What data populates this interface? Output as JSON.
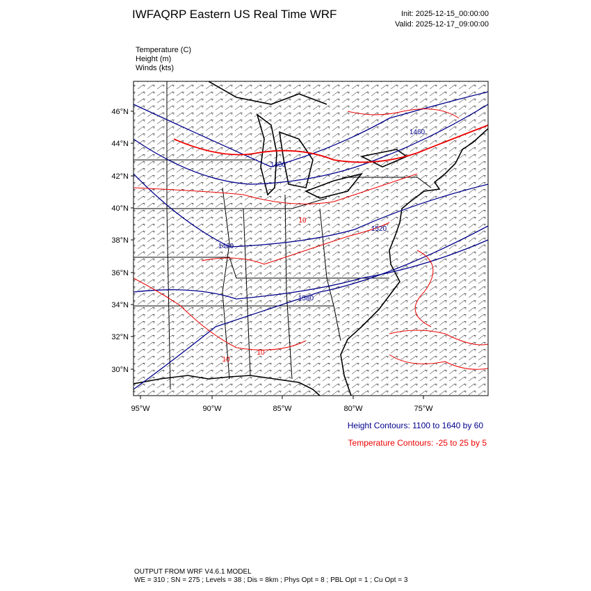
{
  "header": {
    "title": "IWFAQRP Eastern US Real Time WRF",
    "init": "Init: 2025-12-15_00:00:00",
    "valid": "Valid: 2025-12-17_09:00:00"
  },
  "fields": [
    "Temperature   (C)",
    "Height   (m)",
    "Winds   (kts)"
  ],
  "map": {
    "lat_labels": [
      "46°N",
      "44°N",
      "42°N",
      "40°N",
      "38°N",
      "36°N",
      "34°N",
      "32°N",
      "30°N"
    ],
    "lon_labels": [
      "95°W",
      "90°W",
      "85°W",
      "80°W",
      "75°W"
    ],
    "contour_labels": [
      "1400",
      "1460",
      "1460",
      "1520",
      "1580",
      "10",
      "10",
      "10"
    ]
  },
  "legend": {
    "height": "Height Contours: 1100 to 1640 by 60",
    "temperature": "Temperature Contours: -25 to 25 by 5"
  },
  "footer": {
    "line1": "OUTPUT FROM WRF V4.6.1 MODEL",
    "line2": "WE = 310 ; SN = 275 ; Levels = 38 ; Dis = 8km ; Phys Opt = 8 ; PBL Opt = 1 ; Cu Opt = 3"
  }
}
